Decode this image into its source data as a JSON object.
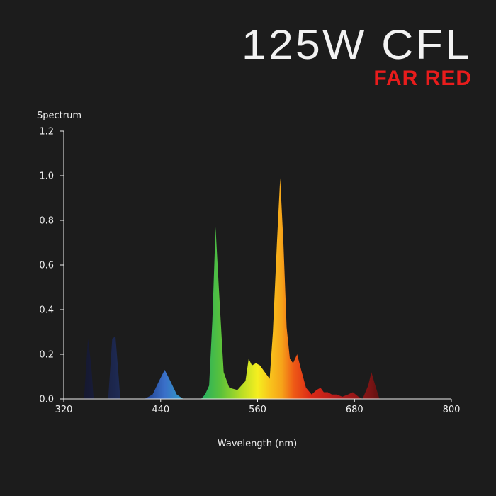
{
  "header": {
    "title": "125W CFL",
    "subtitle": "FAR RED"
  },
  "colors": {
    "background": "#1c1c1c",
    "title": "#f2f2f2",
    "subtitle": "#e81c1c",
    "axis": "#f0f0f0"
  },
  "chart_data": {
    "type": "area",
    "title": "",
    "ylabel": "Spectrum",
    "xlabel": "Wavelength (nm)",
    "xlim": [
      320,
      800
    ],
    "ylim": [
      0,
      1.2
    ],
    "x_ticks": [
      "320",
      "440",
      "560",
      "680",
      "800"
    ],
    "y_ticks": [
      "0.0",
      "0.2",
      "0.4",
      "0.6",
      "0.8",
      "1.0",
      "1.2"
    ],
    "grid": false,
    "series": [
      {
        "values": [
          [
            335,
            0
          ],
          [
            345,
            0
          ],
          [
            350,
            0.27
          ],
          [
            354,
            0.15
          ],
          [
            357,
            0
          ],
          [
            375,
            0
          ],
          [
            380,
            0.27
          ],
          [
            384,
            0.28
          ],
          [
            388,
            0.1
          ],
          [
            390,
            0
          ],
          [
            420,
            0
          ],
          [
            430,
            0.02
          ],
          [
            438,
            0.08
          ],
          [
            445,
            0.13
          ],
          [
            452,
            0.08
          ],
          [
            460,
            0.02
          ],
          [
            468,
            0
          ],
          [
            490,
            0
          ],
          [
            495,
            0.02
          ],
          [
            500,
            0.06
          ],
          [
            504,
            0.35
          ],
          [
            508,
            0.77
          ],
          [
            512,
            0.5
          ],
          [
            518,
            0.12
          ],
          [
            525,
            0.05
          ],
          [
            535,
            0.04
          ],
          [
            545,
            0.08
          ],
          [
            549,
            0.18
          ],
          [
            553,
            0.15
          ],
          [
            558,
            0.16
          ],
          [
            563,
            0.15
          ],
          [
            569,
            0.12
          ],
          [
            575,
            0.09
          ],
          [
            579,
            0.3
          ],
          [
            584,
            0.7
          ],
          [
            588,
            0.99
          ],
          [
            592,
            0.7
          ],
          [
            596,
            0.32
          ],
          [
            600,
            0.18
          ],
          [
            604,
            0.16
          ],
          [
            609,
            0.2
          ],
          [
            614,
            0.13
          ],
          [
            620,
            0.05
          ],
          [
            627,
            0.02
          ],
          [
            633,
            0.04
          ],
          [
            638,
            0.05
          ],
          [
            642,
            0.03
          ],
          [
            647,
            0.03
          ],
          [
            652,
            0.02
          ],
          [
            658,
            0.02
          ],
          [
            665,
            0.01
          ],
          [
            672,
            0.02
          ],
          [
            678,
            0.03
          ],
          [
            685,
            0.01
          ],
          [
            690,
            0
          ],
          [
            697,
            0.06
          ],
          [
            701,
            0.12
          ],
          [
            705,
            0.07
          ],
          [
            711,
            0
          ],
          [
            800,
            0
          ]
        ]
      }
    ],
    "gradient_stops": [
      [
        335,
        "#141629"
      ],
      [
        360,
        "#181c3a"
      ],
      [
        390,
        "#1e2b55"
      ],
      [
        420,
        "#1f3f8c"
      ],
      [
        445,
        "#3a6fc8"
      ],
      [
        470,
        "#2fa0c4"
      ],
      [
        495,
        "#2db35a"
      ],
      [
        515,
        "#5cc23a"
      ],
      [
        540,
        "#b8dd25"
      ],
      [
        560,
        "#f5ee20"
      ],
      [
        575,
        "#f8c51c"
      ],
      [
        590,
        "#f6a319"
      ],
      [
        605,
        "#ee5a16"
      ],
      [
        625,
        "#dc2a17"
      ],
      [
        660,
        "#b01a1a"
      ],
      [
        700,
        "#7a1414"
      ],
      [
        720,
        "#4a0e0e"
      ]
    ]
  }
}
